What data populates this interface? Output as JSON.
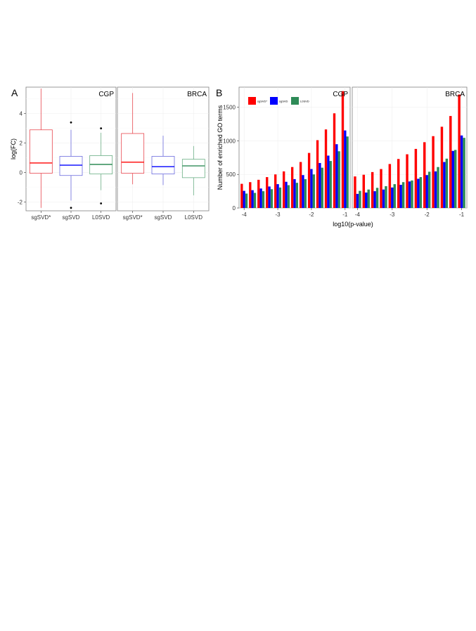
{
  "figure": {
    "panel_a_letter": "A",
    "panel_b_letter": "B"
  },
  "colors": {
    "sgSVD*": "#ff0000",
    "sgSVD": "#0000ff",
    "L0SVD": "#2e8b57",
    "box_sgSVD*": "#e8474f",
    "box_sgSVD": "#6b6bde",
    "box_L0SVD": "#6aae84"
  },
  "chart_data": [
    {
      "type": "box",
      "ylabel": "log(FC)",
      "xlabel": "",
      "ylim": [
        -2.6,
        5.8
      ],
      "yticks": [
        -2,
        0,
        2,
        4
      ],
      "categories": [
        "sgSVD*",
        "sgSVD",
        "L0SVD"
      ],
      "facets": [
        {
          "title": "CGP",
          "boxes": [
            {
              "name": "sgSVD*",
              "whisker_low": -2.4,
              "q1": -0.05,
              "median": 0.65,
              "q3": 2.9,
              "whisker_high": 5.7,
              "outliers": []
            },
            {
              "name": "sgSVD",
              "whisker_low": -1.9,
              "q1": -0.2,
              "median": 0.5,
              "q3": 1.1,
              "whisker_high": 2.9,
              "outliers": [
                3.4,
                -2.4
              ]
            },
            {
              "name": "L0SVD",
              "whisker_low": -1.2,
              "q1": -0.1,
              "median": 0.55,
              "q3": 1.15,
              "whisker_high": 2.7,
              "outliers": [
                3.0,
                -2.1
              ]
            }
          ]
        },
        {
          "title": "BRCA",
          "boxes": [
            {
              "name": "sgSVD*",
              "whisker_low": -0.8,
              "q1": -0.05,
              "median": 0.7,
              "q3": 2.65,
              "whisker_high": 5.4,
              "outliers": []
            },
            {
              "name": "sgSVD",
              "whisker_low": -0.85,
              "q1": -0.1,
              "median": 0.4,
              "q3": 1.1,
              "whisker_high": 2.5,
              "outliers": []
            },
            {
              "name": "L0SVD",
              "whisker_low": -1.55,
              "q1": -0.35,
              "median": 0.45,
              "q3": 0.9,
              "whisker_high": 1.8,
              "outliers": []
            }
          ]
        }
      ]
    },
    {
      "type": "bar",
      "ylabel": "Number of enriched GO terms",
      "xlabel": "log10(p-value)",
      "ylim": [
        0,
        1800
      ],
      "yticks": [
        0,
        500,
        1000,
        1500
      ],
      "xlim": [
        -4.15,
        -0.85
      ],
      "xticks": [
        -4,
        -3,
        -2,
        -1
      ],
      "legend_position": "top-left",
      "series_names": [
        "sgSVD*",
        "sgSVD",
        "L0SVD"
      ],
      "x": [
        -4,
        -3.75,
        -3.5,
        -3.25,
        -3,
        -2.75,
        -2.5,
        -2.25,
        -2,
        -1.75,
        -1.5,
        -1.25,
        -1
      ],
      "facets": [
        {
          "title": "CGP",
          "series": [
            {
              "name": "sgSVD*",
              "values": [
                360,
                385,
                420,
                460,
                500,
                545,
                610,
                685,
                820,
                1010,
                1170,
                1410,
                1740
              ]
            },
            {
              "name": "sgSVD",
              "values": [
                255,
                265,
                290,
                320,
                355,
                390,
                430,
                490,
                580,
                670,
                780,
                950,
                1155
              ]
            },
            {
              "name": "L0SVD",
              "values": [
                215,
                225,
                250,
                280,
                305,
                340,
                375,
                430,
                500,
                600,
                700,
                845,
                1065
              ]
            }
          ]
        },
        {
          "title": "BRCA",
          "series": [
            {
              "name": "sgSVD*",
              "values": [
                470,
                495,
                535,
                580,
                655,
                730,
                800,
                880,
                980,
                1070,
                1210,
                1370,
                1690
              ]
            },
            {
              "name": "sgSVD",
              "values": [
                210,
                230,
                250,
                275,
                305,
                345,
                395,
                435,
                490,
                545,
                685,
                850,
                1080
              ]
            },
            {
              "name": "L0SVD",
              "values": [
                255,
                275,
                300,
                325,
                355,
                385,
                410,
                460,
                540,
                610,
                735,
                865,
                1045
              ]
            }
          ]
        }
      ]
    }
  ]
}
